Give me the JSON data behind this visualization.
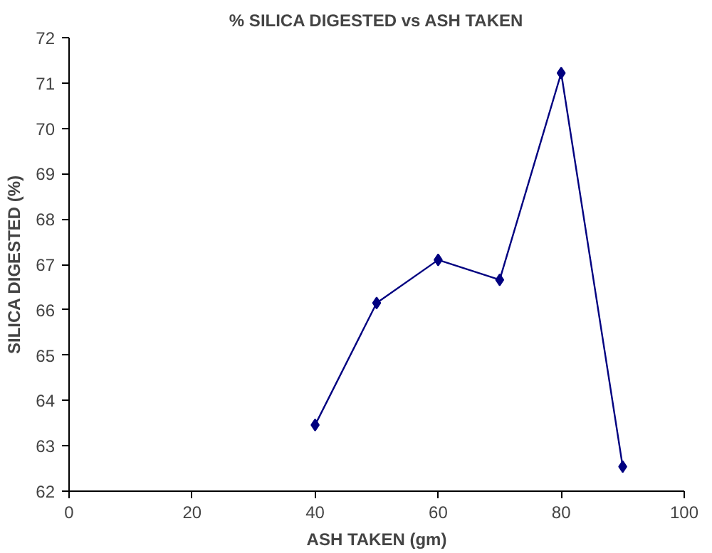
{
  "chart_data": {
    "type": "line",
    "title": "% SILICA DIGESTED vs ASH TAKEN",
    "xlabel": "ASH TAKEN (gm)",
    "ylabel": "SILICA DIGESTED (%)",
    "x": [
      40,
      50,
      60,
      70,
      80,
      90
    ],
    "series": [
      {
        "color": "#000080",
        "values": [
          63.46,
          66.15,
          67.1,
          66.66,
          71.22,
          62.54
        ]
      }
    ],
    "xlim": [
      0,
      100
    ],
    "xticks": [
      0,
      20,
      40,
      60,
      80,
      100
    ],
    "ylim": [
      62,
      72
    ],
    "yticks": [
      62,
      63,
      64,
      65,
      66,
      67,
      68,
      69,
      70,
      71,
      72
    ],
    "grid": false,
    "marker": "diamond",
    "line_style": "solid"
  }
}
